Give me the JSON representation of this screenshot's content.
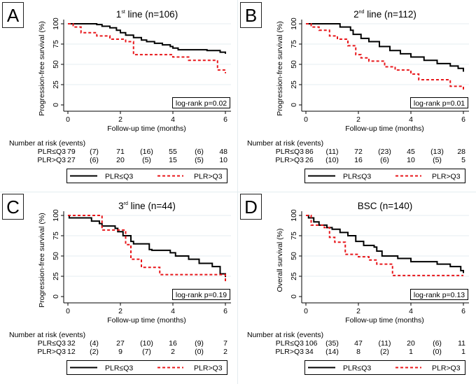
{
  "colors": {
    "series_low": "#000000",
    "series_high": "#e8171b",
    "grid": "#e6eef2"
  },
  "legend": {
    "low_label": "PLR≤Q3",
    "high_label": "PLR>Q3"
  },
  "chart_data": [
    {
      "panel": "A",
      "type": "line",
      "title_base": "1",
      "title_sup": "st",
      "title_rest": " line (n=106)",
      "ylabel": "Progression-free survival (%)",
      "xlabel": "Follow-up time (months)",
      "xlim": [
        0,
        6
      ],
      "ylim": [
        0,
        100
      ],
      "xticks": [
        0,
        2,
        4,
        6
      ],
      "yticks": [
        0,
        25,
        50,
        75,
        100
      ],
      "grid": true,
      "annotation": "log-rank p=0.02",
      "series": [
        {
          "name": "PLR≤Q3",
          "style": "solid",
          "x": [
            0,
            0.9,
            1.1,
            1.3,
            1.6,
            1.85,
            2.0,
            2.2,
            2.5,
            2.8,
            3.0,
            3.3,
            3.6,
            3.9,
            4.0,
            4.2,
            5.3,
            5.8,
            6.0
          ],
          "y": [
            100,
            100,
            99,
            97,
            95,
            92,
            89,
            86,
            83,
            80,
            78,
            76,
            74,
            72,
            70,
            68,
            67,
            65,
            63
          ]
        },
        {
          "name": "PLR>Q3",
          "style": "dashed",
          "x": [
            0,
            0.2,
            0.5,
            1.1,
            1.6,
            2.2,
            2.5,
            4.0,
            4.6,
            5.7,
            6.0
          ],
          "y": [
            100,
            96,
            89,
            85,
            81,
            78,
            62,
            59,
            55,
            43,
            39
          ]
        }
      ],
      "risk_table": {
        "header": "Number at risk (events)",
        "rows": [
          {
            "label": "PLR≤Q3",
            "values": [
              "79",
              "(7)",
              "71",
              "(16)",
              "55",
              "(6)",
              "48"
            ]
          },
          {
            "label": "PLR>Q3",
            "values": [
              "27",
              "(6)",
              "20",
              "(5)",
              "15",
              "(5)",
              "10"
            ]
          }
        ]
      }
    },
    {
      "panel": "B",
      "type": "line",
      "title_base": "2",
      "title_sup": "nd",
      "title_rest": " line (n=112)",
      "ylabel": "Progression-free survival (%)",
      "xlabel": "Follow-up time (months)",
      "xlim": [
        0,
        6
      ],
      "ylim": [
        0,
        100
      ],
      "xticks": [
        0,
        2,
        4,
        6
      ],
      "yticks": [
        0,
        25,
        50,
        75,
        100
      ],
      "grid": true,
      "annotation": "log-rank p=0.01",
      "series": [
        {
          "name": "PLR≤Q3",
          "style": "solid",
          "x": [
            0,
            1.1,
            1.3,
            1.7,
            1.8,
            2.1,
            2.4,
            2.8,
            3.2,
            3.6,
            4.0,
            4.5,
            5.0,
            5.5,
            5.8,
            6.0
          ],
          "y": [
            100,
            100,
            96,
            92,
            87,
            82,
            78,
            72,
            67,
            63,
            59,
            55,
            51,
            48,
            45,
            41
          ]
        },
        {
          "name": "PLR>Q3",
          "style": "dashed",
          "x": [
            0,
            0.2,
            0.5,
            0.9,
            1.2,
            1.6,
            1.9,
            2.1,
            2.4,
            3.0,
            3.4,
            4.0,
            4.3,
            5.5,
            6.0
          ],
          "y": [
            100,
            96,
            92,
            85,
            81,
            73,
            62,
            58,
            54,
            47,
            43,
            38,
            31,
            23,
            19
          ]
        }
      ],
      "risk_table": {
        "header": "Number at risk (events)",
        "rows": [
          {
            "label": "PLR≤Q3",
            "values": [
              "86",
              "(11)",
              "72",
              "(23)",
              "45",
              "(13)",
              "28"
            ]
          },
          {
            "label": "PLR>Q3",
            "values": [
              "26",
              "(10)",
              "16",
              "(6)",
              "10",
              "(5)",
              "5"
            ]
          }
        ]
      }
    },
    {
      "panel": "C",
      "type": "line",
      "title_base": "3",
      "title_sup": "rd",
      "title_rest": " line (n=44)",
      "ylabel": "Progression-free survival (%)",
      "xlabel": "Follow-up time (months)",
      "xlim": [
        0,
        6
      ],
      "ylim": [
        0,
        100
      ],
      "xticks": [
        0,
        2,
        4,
        6
      ],
      "yticks": [
        0,
        25,
        50,
        75,
        100
      ],
      "grid": true,
      "annotation": "log-rank p=0.19",
      "series": [
        {
          "name": "PLR≤Q3",
          "style": "solid",
          "x": [
            0,
            0.05,
            0.9,
            1.2,
            1.3,
            1.8,
            1.9,
            2.1,
            2.4,
            2.5,
            3.1,
            3.2,
            3.9,
            4.1,
            4.6,
            5.0,
            5.5,
            5.8,
            6.0
          ],
          "y": [
            100,
            97,
            93,
            90,
            87,
            84,
            80,
            75,
            68,
            65,
            58,
            57,
            54,
            50,
            46,
            41,
            37,
            28,
            24
          ]
        },
        {
          "name": "PLR>Q3",
          "style": "dashed",
          "x": [
            0,
            1.2,
            1.3,
            2.0,
            2.2,
            2.4,
            2.8,
            3.5,
            6.0
          ],
          "y": [
            100,
            100,
            82,
            82,
            64,
            46,
            36,
            27,
            18
          ]
        }
      ],
      "risk_table": {
        "header": "Number at risk (events)",
        "rows": [
          {
            "label": "PLR≤Q3",
            "values": [
              "32",
              "(4)",
              "27",
              "(10)",
              "16",
              "(9)",
              "7"
            ]
          },
          {
            "label": "PLR>Q3",
            "values": [
              "12",
              "(2)",
              "9",
              "(7)",
              "2",
              "(0)",
              "2"
            ]
          }
        ]
      }
    },
    {
      "panel": "D",
      "type": "line",
      "title_base": "BSC (n=140)",
      "title_sup": "",
      "title_rest": "",
      "ylabel": "Overall survival (%)",
      "xlabel": "Follow-up time (months)",
      "xlim": [
        0,
        6
      ],
      "ylim": [
        0,
        100
      ],
      "xticks": [
        0,
        2,
        4,
        6
      ],
      "yticks": [
        0,
        25,
        50,
        75,
        100
      ],
      "grid": true,
      "annotation": "log-rank p=0.13",
      "series": [
        {
          "name": "PLR≤Q3",
          "style": "solid",
          "x": [
            0,
            0.1,
            0.3,
            0.5,
            0.8,
            1.0,
            1.3,
            1.6,
            1.9,
            2.2,
            2.6,
            2.7,
            2.9,
            3.5,
            4.0,
            5.0,
            5.5,
            5.9,
            6.0
          ],
          "y": [
            100,
            97,
            92,
            88,
            85,
            83,
            79,
            75,
            68,
            63,
            61,
            56,
            50,
            47,
            43,
            40,
            37,
            32,
            29
          ]
        },
        {
          "name": "PLR>Q3",
          "style": "dashed",
          "x": [
            0,
            0.2,
            0.7,
            0.9,
            1.1,
            1.5,
            2.0,
            2.4,
            2.7,
            3.3,
            6.0
          ],
          "y": [
            100,
            88,
            85,
            73,
            67,
            52,
            49,
            45,
            40,
            26,
            26
          ]
        }
      ],
      "risk_table": {
        "header": "Number at risk (events)",
        "rows": [
          {
            "label": "PLR≤Q3",
            "values": [
              "106",
              "(35)",
              "47",
              "(11)",
              "20",
              "(6)",
              "11"
            ]
          },
          {
            "label": "PLR>Q3",
            "values": [
              "34",
              "(14)",
              "8",
              "(2)",
              "1",
              "(0)",
              "1"
            ]
          }
        ]
      }
    }
  ]
}
